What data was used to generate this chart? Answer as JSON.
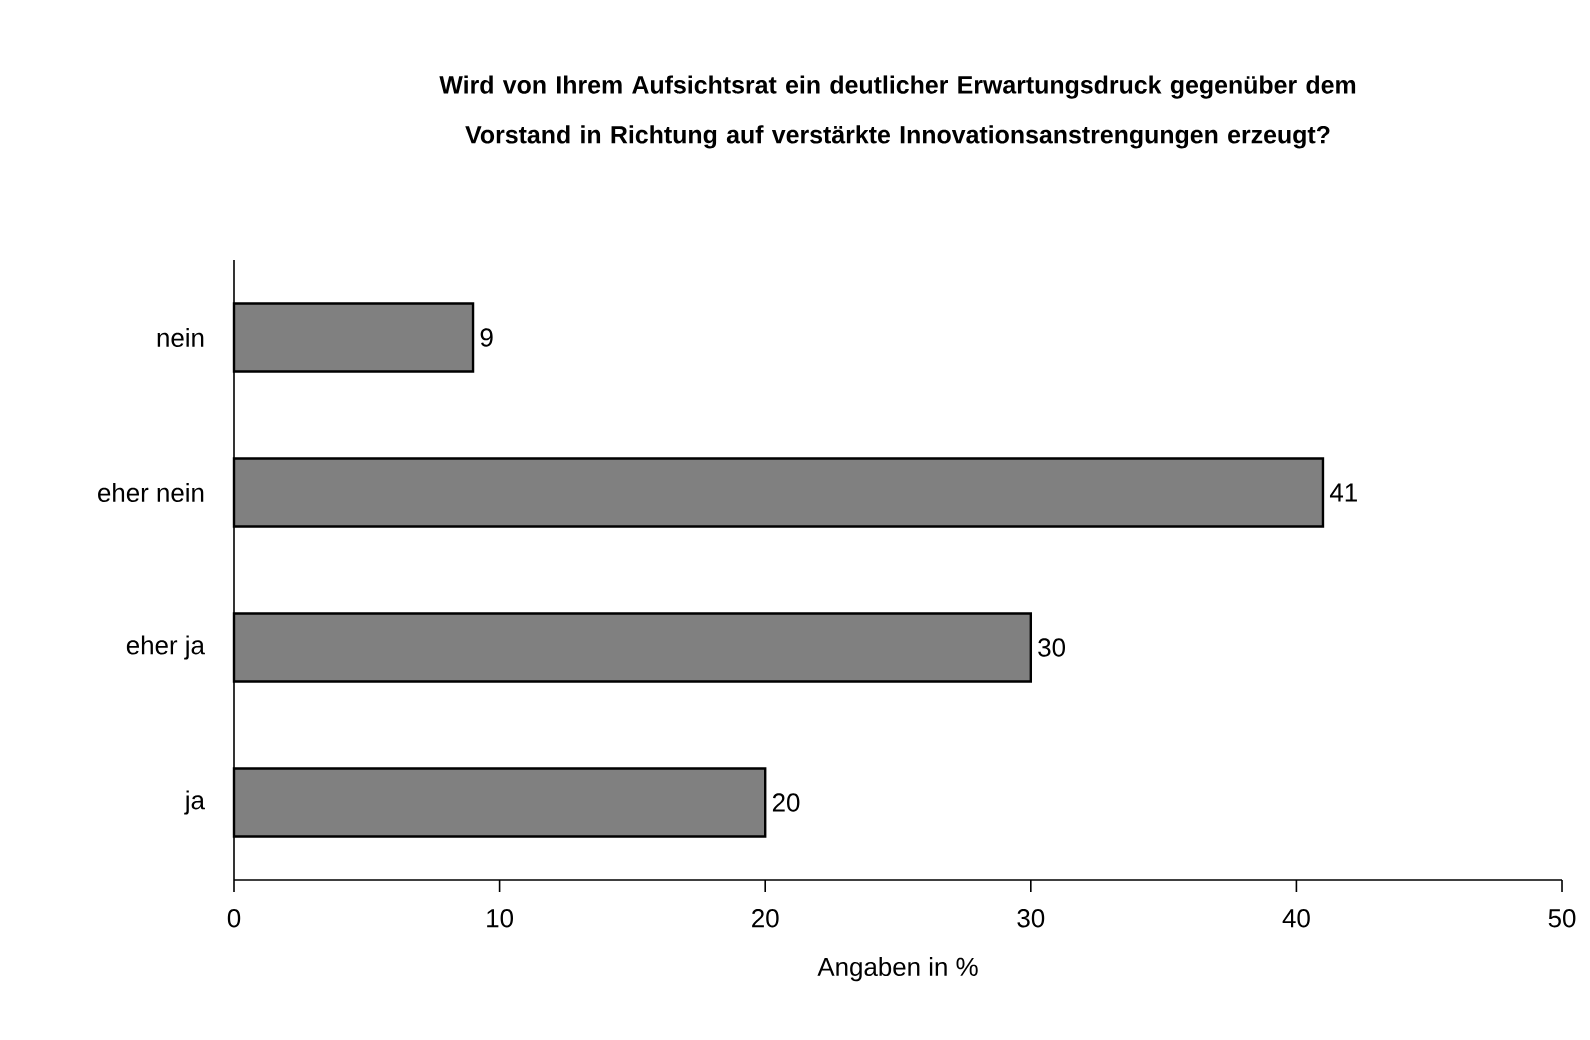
{
  "chart_data": {
    "type": "bar",
    "orientation": "horizontal",
    "title": "Wird von Ihrem Aufsichtsrat ein deutlicher Erwartungsdruck gegenüber dem Vorstand in Richtung auf verstärkte Innovationsanstrengungen erzeugt?",
    "xlabel": "Angaben in %",
    "categories": [
      "nein",
      "eher nein",
      "eher ja",
      "ja"
    ],
    "values": [
      9,
      41,
      30,
      20
    ],
    "color": "#808080",
    "xlim": [
      0,
      50
    ],
    "xticks": [
      0,
      10,
      20,
      30,
      40,
      50
    ],
    "data_labels": true,
    "grid": false
  }
}
